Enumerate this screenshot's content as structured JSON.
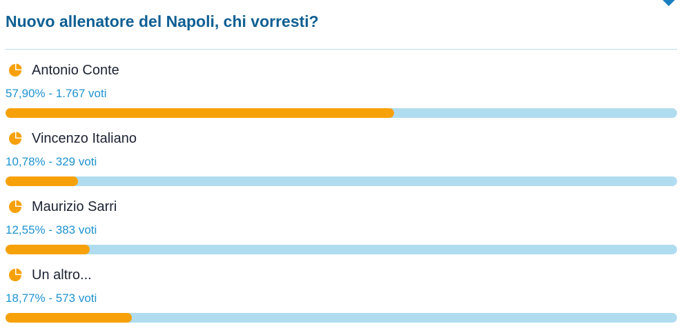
{
  "poll": {
    "title": "Nuovo allenatore del Napoli, chi vorresti?",
    "colors": {
      "title": "#0e5f93",
      "bar_fill": "#f7a10a",
      "bar_track": "#b0dcf0",
      "stats": "#1d93d1"
    },
    "option_icon": "pie-chart-icon",
    "options": [
      {
        "name": "Antonio Conte",
        "stats": "57,90% - 1.767 voti",
        "percent": 57.9
      },
      {
        "name": "Vincenzo Italiano",
        "stats": "10,78% - 329 voti",
        "percent": 10.78
      },
      {
        "name": "Maurizio Sarri",
        "stats": "12,55% - 383 voti",
        "percent": 12.55
      },
      {
        "name": "Un altro...",
        "stats": "18,77% - 573 voti",
        "percent": 18.77
      }
    ]
  }
}
